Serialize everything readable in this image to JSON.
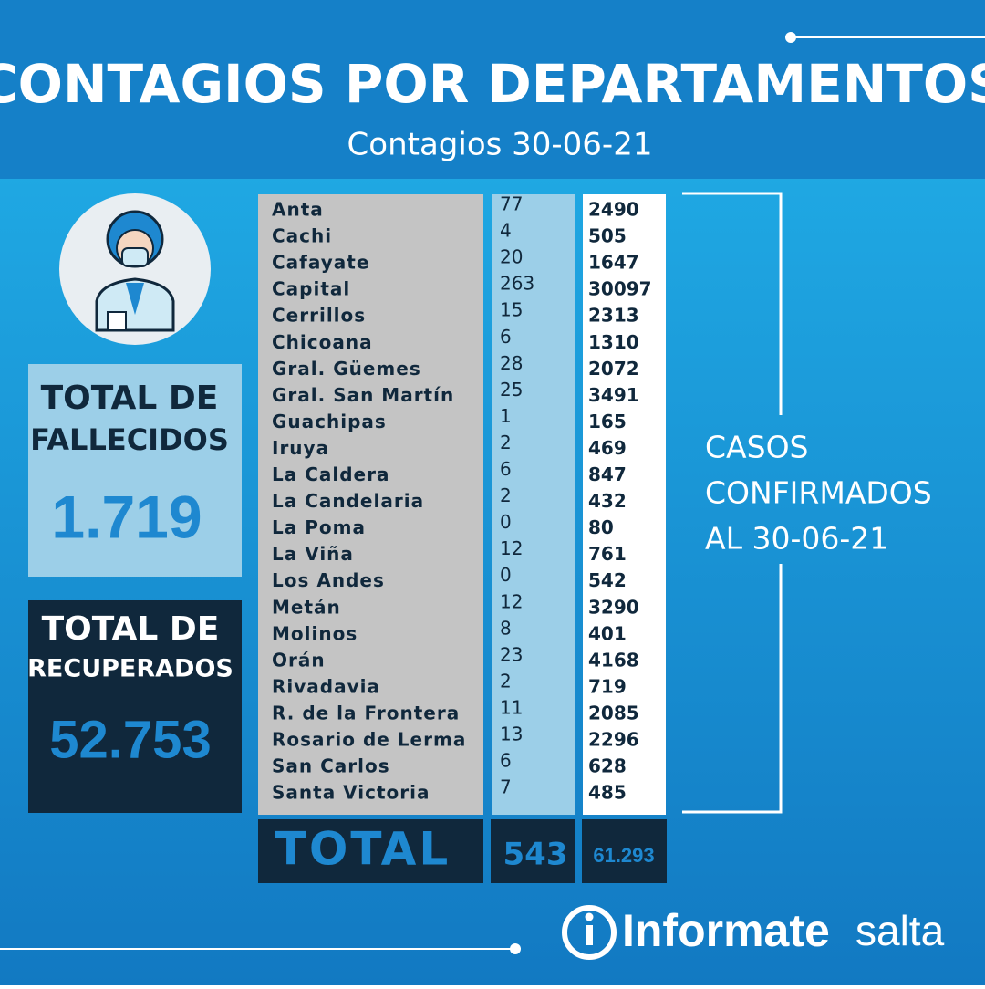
{
  "header": {
    "title": "CONTAGIOS POR DEPARTAMENTOS",
    "subtitle": "Contagios 30-06-21"
  },
  "deaths": {
    "label": [
      "TOTAL DE",
      "FALLECIDOS"
    ],
    "value": "1.719"
  },
  "recovered": {
    "label": [
      "TOTAL DE",
      "RECUPERADOS"
    ],
    "value": "52.753"
  },
  "table": {
    "rows": [
      [
        "Anta",
        77,
        2490
      ],
      [
        "Cachi",
        4,
        505
      ],
      [
        "Cafayate",
        20,
        1647
      ],
      [
        "Capital",
        263,
        30097
      ],
      [
        "Cerrillos",
        15,
        2313
      ],
      [
        "Chicoana",
        6,
        1310
      ],
      [
        "Gral. Güemes",
        28,
        2072
      ],
      [
        "Gral. San Martín",
        25,
        3491
      ],
      [
        "Guachipas",
        1,
        165
      ],
      [
        "Iruya",
        2,
        469
      ],
      [
        "La Caldera",
        6,
        847
      ],
      [
        "La Candelaria",
        2,
        432
      ],
      [
        "La Poma",
        0,
        80
      ],
      [
        "La Viña",
        12,
        761
      ],
      [
        "Los Andes",
        0,
        542
      ],
      [
        "Metán",
        12,
        3290
      ],
      [
        "Molinos",
        8,
        401
      ],
      [
        "Orán",
        23,
        4168
      ],
      [
        "Rivadavia",
        2,
        719
      ],
      [
        "R. de la Frontera",
        11,
        2085
      ],
      [
        "Rosario de Lerma",
        13,
        2296
      ],
      [
        "San Carlos",
        6,
        628
      ],
      [
        "Santa Victoria",
        7,
        485
      ]
    ],
    "total": [
      "TOTAL",
      "543",
      "61.293"
    ]
  },
  "side_label": [
    "CASOS",
    "CONFIRMADOS",
    "AL 30-06-21"
  ],
  "logo": {
    "main": "Informate",
    "sub": "salta"
  }
}
